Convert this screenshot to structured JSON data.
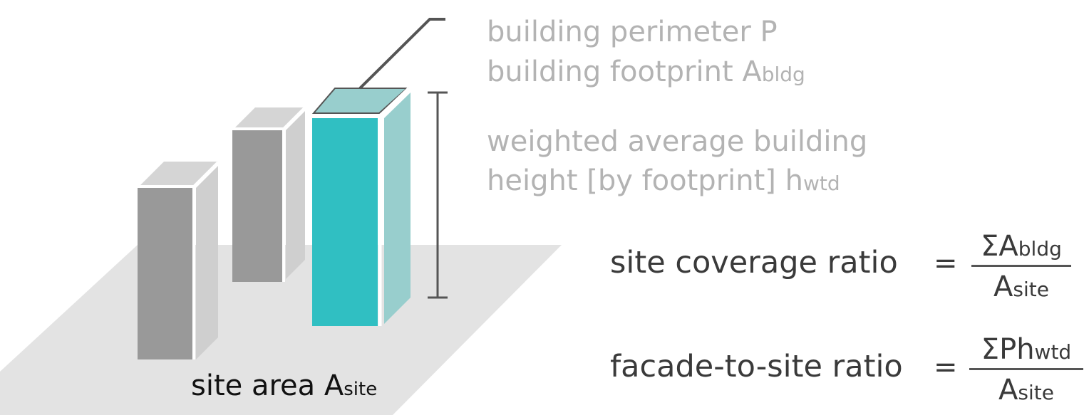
{
  "labels": {
    "perimeter": "building perimeter P",
    "footprint_main": "building footprint A",
    "footprint_sub": "bldg",
    "height_line1": "weighted average building",
    "height_line2_main": "height [by footprint] h",
    "height_line2_sub": "wtd",
    "site_area_main": "site area A",
    "site_area_sub": "site"
  },
  "formulas": {
    "coverage": {
      "name": "site coverage ratio",
      "equals": "=",
      "numerator_main": "ΣA",
      "numerator_sub": "bldg",
      "denominator_main": "A",
      "denominator_sub": "site"
    },
    "facade": {
      "name": "facade-to-site ratio",
      "equals": "=",
      "numerator_main": "ΣPh",
      "numerator_sub": "wtd",
      "denominator_main": "A",
      "denominator_sub": "site"
    }
  },
  "colors": {
    "ground": "#e3e3e3",
    "building_front": "#999999",
    "building_side": "#cfcfcf",
    "building_top": "#d5d5d5",
    "highlight_front": "#30bfc2",
    "highlight_side": "#98cecd",
    "highlight_top": "#98cecd",
    "leader_line": "#555555"
  }
}
